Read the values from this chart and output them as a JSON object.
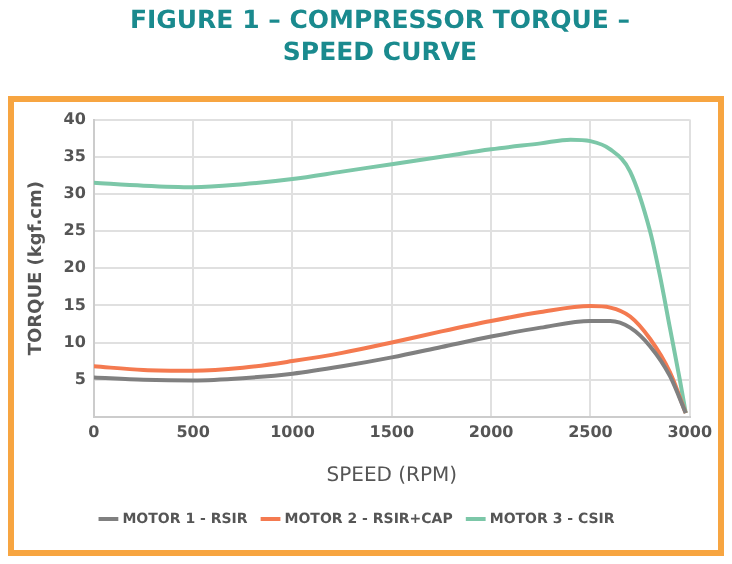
{
  "chart_data": {
    "type": "line",
    "title": "FIGURE 1 – COMPRESSOR TORQUE – SPEED CURVE",
    "xlabel": "SPEED (RPM)",
    "ylabel": "TORQUE (kgf.cm)",
    "xlim": [
      0,
      3000
    ],
    "xticks": [
      0,
      500,
      1000,
      1500,
      2000,
      2500,
      3000
    ],
    "ylim": [
      0,
      40
    ],
    "yticks": [
      {
        "value": 0,
        "label": null
      },
      5,
      10,
      15,
      20,
      25,
      30,
      35,
      40
    ],
    "grid": true,
    "legend": "bottom",
    "marker": "none",
    "line_style": "solid",
    "series": [
      {
        "name": "MOTOR 1 - RSIR",
        "color": "#808080",
        "x": [
          0,
          250,
          500,
          750,
          1000,
          1250,
          1500,
          1750,
          2000,
          2250,
          2500,
          2600,
          2700,
          2800,
          2900,
          2980
        ],
        "values": [
          5.3,
          5.0,
          4.9,
          5.2,
          5.8,
          6.8,
          8.0,
          9.4,
          10.8,
          12.0,
          12.9,
          12.9,
          12.0,
          9.5,
          5.5,
          0.5
        ]
      },
      {
        "name": "MOTOR 2 - RSIR+CAP",
        "color": "#f47a50",
        "x": [
          0,
          250,
          500,
          750,
          1000,
          1250,
          1500,
          1750,
          2000,
          2250,
          2500,
          2600,
          2700,
          2800,
          2900,
          2980
        ],
        "values": [
          6.8,
          6.3,
          6.2,
          6.6,
          7.5,
          8.6,
          10.0,
          11.5,
          12.9,
          14.1,
          14.9,
          14.7,
          13.5,
          10.5,
          6.0,
          0.5
        ]
      },
      {
        "name": "MOTOR 3 - CSIR",
        "color": "#7cc7a8",
        "x": [
          0,
          250,
          500,
          750,
          1000,
          1250,
          1500,
          1750,
          2000,
          2250,
          2400,
          2500,
          2600,
          2700,
          2800,
          2850,
          2900,
          2950,
          2980
        ],
        "values": [
          31.5,
          31.1,
          30.9,
          31.3,
          32.0,
          33.0,
          34.0,
          35.0,
          36.0,
          36.8,
          37.3,
          37.1,
          36.0,
          33.0,
          25.0,
          19.0,
          12.0,
          5.0,
          0.5
        ]
      }
    ]
  }
}
